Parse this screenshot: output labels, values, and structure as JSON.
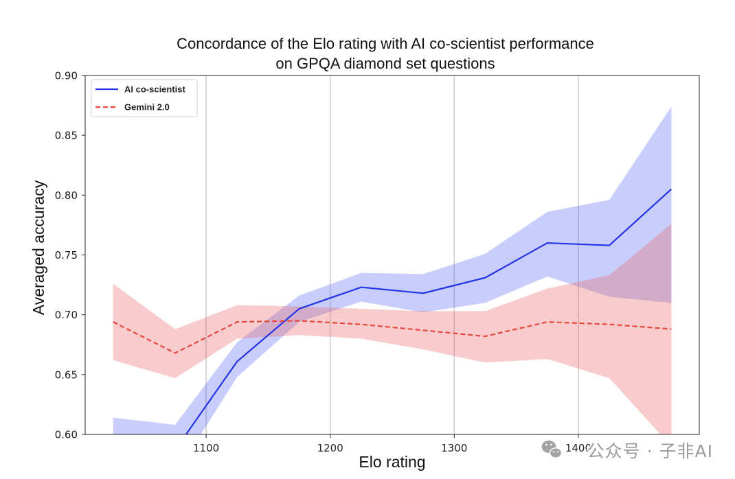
{
  "chart_data": {
    "type": "line",
    "title": "Concordance of the Elo rating with AI co-scientist performance\non GPQA diamond set questions",
    "xlabel": "Elo rating",
    "ylabel": "Averaged accuracy",
    "xlim": [
      1002.5,
      1497.5
    ],
    "ylim": [
      0.6,
      0.9
    ],
    "xticks": [
      "1100",
      "1200",
      "1300",
      "1400"
    ],
    "yticks": [
      "0.60",
      "0.65",
      "0.70",
      "0.75",
      "0.80",
      "0.85",
      "0.90"
    ],
    "grid": {
      "x": true,
      "y": false
    },
    "legend": "upper-left",
    "x": [
      1025,
      1075,
      1125,
      1175,
      1225,
      1275,
      1325,
      1375,
      1425,
      1475
    ],
    "series": [
      {
        "name": "AI co-scientist",
        "color": "#2233e6",
        "band_color": "#5563f5",
        "line_style": "solid",
        "values": [
          0.59,
          0.587,
          0.661,
          0.705,
          0.723,
          0.718,
          0.731,
          0.76,
          0.758,
          0.805
        ],
        "lower": [
          0.566,
          0.566,
          0.648,
          0.694,
          0.711,
          0.702,
          0.71,
          0.732,
          0.715,
          0.71
        ],
        "upper": [
          0.614,
          0.608,
          0.677,
          0.716,
          0.735,
          0.734,
          0.751,
          0.786,
          0.796,
          0.874
        ]
      },
      {
        "name": "Gemini 2.0",
        "color": "#e8453c",
        "band_color": "#e86060",
        "line_style": "dashed",
        "values": [
          0.694,
          0.668,
          0.694,
          0.695,
          0.692,
          0.687,
          0.682,
          0.694,
          0.692,
          0.688
        ],
        "lower": [
          0.662,
          0.647,
          0.68,
          0.683,
          0.68,
          0.671,
          0.66,
          0.663,
          0.647,
          0.59
        ],
        "upper": [
          0.726,
          0.688,
          0.708,
          0.707,
          0.705,
          0.703,
          0.703,
          0.722,
          0.733,
          0.776
        ]
      }
    ]
  },
  "watermark": {
    "icon": "wechat-icon",
    "text": "公众号 · 子非AI"
  }
}
